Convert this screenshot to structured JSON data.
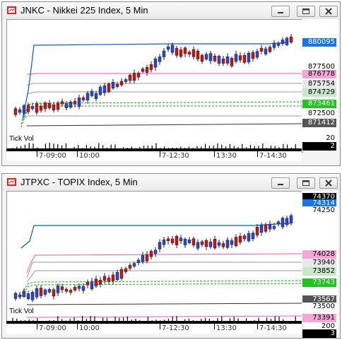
{
  "colors": {
    "up": "#1f3fbf",
    "down": "#c01818",
    "ma": "#0a56c8",
    "pink": "#e05ab8",
    "green": "#1aa01a",
    "gray": "#999999",
    "dark": "#333333"
  },
  "windows": [
    {
      "title": "JNKC - Nikkei 225 Index, 5 Min",
      "price_labels": [
        {
          "text": "880095",
          "bg": "#1a73e8",
          "fg": "#ffffff",
          "v": 880095
        },
        {
          "text": "877500",
          "bg": "#ffffff",
          "fg": "#000000",
          "v": 877500
        },
        {
          "text": "876778",
          "bg": "#f4a6d6",
          "fg": "#000000",
          "v": 876778
        },
        {
          "text": "875754",
          "bg": "#e8e8e8",
          "fg": "#000000",
          "v": 875754
        },
        {
          "text": "874729",
          "bg": "#c8e6c8",
          "fg": "#000000",
          "v": 874729
        },
        {
          "text": "873461",
          "bg": "#22c322",
          "fg": "#ffffff",
          "v": 873461
        },
        {
          "text": "872500",
          "bg": "#ffffff",
          "fg": "#000000",
          "v": 872500
        },
        {
          "text": "871412",
          "bg": "#555555",
          "fg": "#ffffff",
          "v": 871412
        }
      ],
      "volume_labels": [
        {
          "text": "20",
          "bg": "#ffffff",
          "fg": "#000000"
        },
        {
          "text": "2",
          "bg": "#000000",
          "fg": "#ffffff"
        }
      ],
      "tick_label": "Tick Vol",
      "x_labels": [
        "7-09:00",
        "10:00",
        "7-12:30",
        "13:30",
        "7-14:30"
      ]
    },
    {
      "title": "JTPXC - TOPIX Index, 5 Min",
      "price_labels": [
        {
          "text": "74370",
          "bg": "#000000",
          "fg": "#ffffff",
          "v": 7437
        },
        {
          "text": "74314",
          "bg": "#1a73e8",
          "fg": "#ffffff",
          "v": 7431.4
        },
        {
          "text": "74250",
          "bg": "#ffffff",
          "fg": "#000000",
          "v": 7425
        },
        {
          "text": "74028",
          "bg": "#f4a6d6",
          "fg": "#000000",
          "v": 7402.8
        },
        {
          "text": "73940",
          "bg": "#e8e8e8",
          "fg": "#000000",
          "v": 7394
        },
        {
          "text": "73852",
          "bg": "#c8e6c8",
          "fg": "#000000",
          "v": 7385.2
        },
        {
          "text": "73743",
          "bg": "#22c322",
          "fg": "#ffffff",
          "v": 7374.3
        },
        {
          "text": "73567",
          "bg": "#555555",
          "fg": "#ffffff",
          "v": 7356.7
        },
        {
          "text": "73500",
          "bg": "#ffffff",
          "fg": "#000000",
          "v": 7350
        },
        {
          "text": "73391",
          "bg": "#f4a6d6",
          "fg": "#000000",
          "v": 7339.1
        }
      ],
      "volume_labels": [
        {
          "text": "200",
          "bg": "#ffffff",
          "fg": "#000000"
        },
        {
          "text": "3",
          "bg": "#000000",
          "fg": "#ffffff"
        }
      ],
      "tick_label": "Tick Vol",
      "x_labels": [
        "7-09:00",
        "10:00",
        "7-12:30",
        "13:30",
        "7-14:30"
      ]
    }
  ]
}
